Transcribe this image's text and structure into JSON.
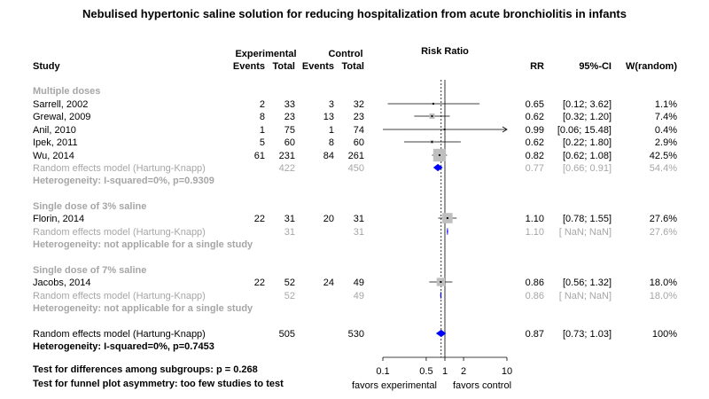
{
  "chart_data": {
    "type": "forest",
    "title": "Nebulised hypertonic saline solution for reducing hospitalization from acute bronchiolitis in infants",
    "headers": {
      "study": "Study",
      "experimental": "Experimental",
      "control": "Control",
      "events": "Events",
      "total": "Total",
      "risk_ratio": "Risk Ratio",
      "rr": "RR",
      "ci": "95%-CI",
      "weight": "W(random)"
    },
    "axis": {
      "scale": "log",
      "ticks": [
        0.1,
        0.5,
        1,
        2,
        10
      ],
      "tick_labels": [
        "0.1",
        "0.5",
        "1",
        "2",
        "10"
      ],
      "range": [
        0.1,
        10
      ],
      "reference_line": 1,
      "pooled_line": 0.87,
      "left_label": "favors experimental",
      "right_label": "favors control"
    },
    "groups": [
      {
        "label": "Multiple doses",
        "studies": [
          {
            "study": "Sarrell, 2002",
            "e_events": "2",
            "e_total": "33",
            "c_events": "3",
            "c_total": "32",
            "rr": 0.65,
            "lo": 0.12,
            "hi": 3.62,
            "rr_text": "0.65",
            "ci_text": "[0.12;  3.62]",
            "weight_text": "1.1%",
            "weight": 1.1
          },
          {
            "study": "Grewal, 2009",
            "e_events": "8",
            "e_total": "23",
            "c_events": "13",
            "c_total": "23",
            "rr": 0.62,
            "lo": 0.32,
            "hi": 1.2,
            "rr_text": "0.62",
            "ci_text": "[0.32;  1.20]",
            "weight_text": "7.4%",
            "weight": 7.4
          },
          {
            "study": "Anil, 2010",
            "e_events": "1",
            "e_total": "75",
            "c_events": "1",
            "c_total": "74",
            "rr": 0.99,
            "lo": 0.06,
            "hi": 15.48,
            "rr_text": "0.99",
            "ci_text": "[0.06; 15.48]",
            "weight_text": "0.4%",
            "weight": 0.4
          },
          {
            "study": "Ipek, 2011",
            "e_events": "5",
            "e_total": "60",
            "c_events": "8",
            "c_total": "60",
            "rr": 0.62,
            "lo": 0.22,
            "hi": 1.8,
            "rr_text": "0.62",
            "ci_text": "[0.22;  1.80]",
            "weight_text": "2.9%",
            "weight": 2.9
          },
          {
            "study": "Wu, 2014",
            "e_events": "61",
            "e_total": "231",
            "c_events": "84",
            "c_total": "261",
            "rr": 0.82,
            "lo": 0.62,
            "hi": 1.08,
            "rr_text": "0.82",
            "ci_text": "[0.62;  1.08]",
            "weight_text": "42.5%",
            "weight": 42.5
          }
        ],
        "pooled": {
          "label": "Random effects model (Hartung-Knapp)",
          "e_total": "422",
          "c_total": "450",
          "rr": 0.77,
          "lo": 0.66,
          "hi": 0.91,
          "rr_text": "0.77",
          "ci_text": "[0.66;  0.91]",
          "weight_text": "54.4%"
        },
        "heterogeneity": "Heterogeneity: I-squared=0%, p=0.9309"
      },
      {
        "label": "Single dose of 3% saline",
        "studies": [
          {
            "study": "Florin, 2014",
            "e_events": "22",
            "e_total": "31",
            "c_events": "20",
            "c_total": "31",
            "rr": 1.1,
            "lo": 0.78,
            "hi": 1.55,
            "rr_text": "1.10",
            "ci_text": "[0.78;  1.55]",
            "weight_text": "27.6%",
            "weight": 27.6
          }
        ],
        "pooled": {
          "label": "Random effects model (Hartung-Knapp)",
          "e_total": "31",
          "c_total": "31",
          "rr": 1.1,
          "lo": null,
          "hi": null,
          "rr_text": "1.10",
          "ci_text": "[ NaN;   NaN]",
          "weight_text": "27.6%"
        },
        "heterogeneity": "Heterogeneity: not applicable for a single study"
      },
      {
        "label": "Single dose of 7% saline",
        "studies": [
          {
            "study": "Jacobs, 2014",
            "e_events": "22",
            "e_total": "52",
            "c_events": "24",
            "c_total": "49",
            "rr": 0.86,
            "lo": 0.56,
            "hi": 1.32,
            "rr_text": "0.86",
            "ci_text": "[0.56;  1.32]",
            "weight_text": "18.0%",
            "weight": 18.0
          }
        ],
        "pooled": {
          "label": "Random effects model (Hartung-Knapp)",
          "e_total": "52",
          "c_total": "49",
          "rr": 0.86,
          "lo": null,
          "hi": null,
          "rr_text": "0.86",
          "ci_text": "[ NaN;   NaN]",
          "weight_text": "18.0%"
        },
        "heterogeneity": "Heterogeneity: not applicable for a single study"
      }
    ],
    "overall": {
      "label": "Random effects model (Hartung-Knapp)",
      "e_total": "505",
      "c_total": "530",
      "rr": 0.87,
      "lo": 0.73,
      "hi": 1.03,
      "rr_text": "0.87",
      "ci_text": "[0.73;  1.03]",
      "weight_text": "100%",
      "heterogeneity": "Heterogeneity: I-squared=0%, p=0.7453"
    },
    "footer": [
      "Test for differences among subgroups: p = 0.268",
      "Test for funnel plot asymmetry: too few studies to test"
    ],
    "colors": {
      "pooled_diamond": "#0000ff",
      "box": "#bfbfbf",
      "muted_text": "#a6a6a6",
      "line": "#000000"
    }
  }
}
